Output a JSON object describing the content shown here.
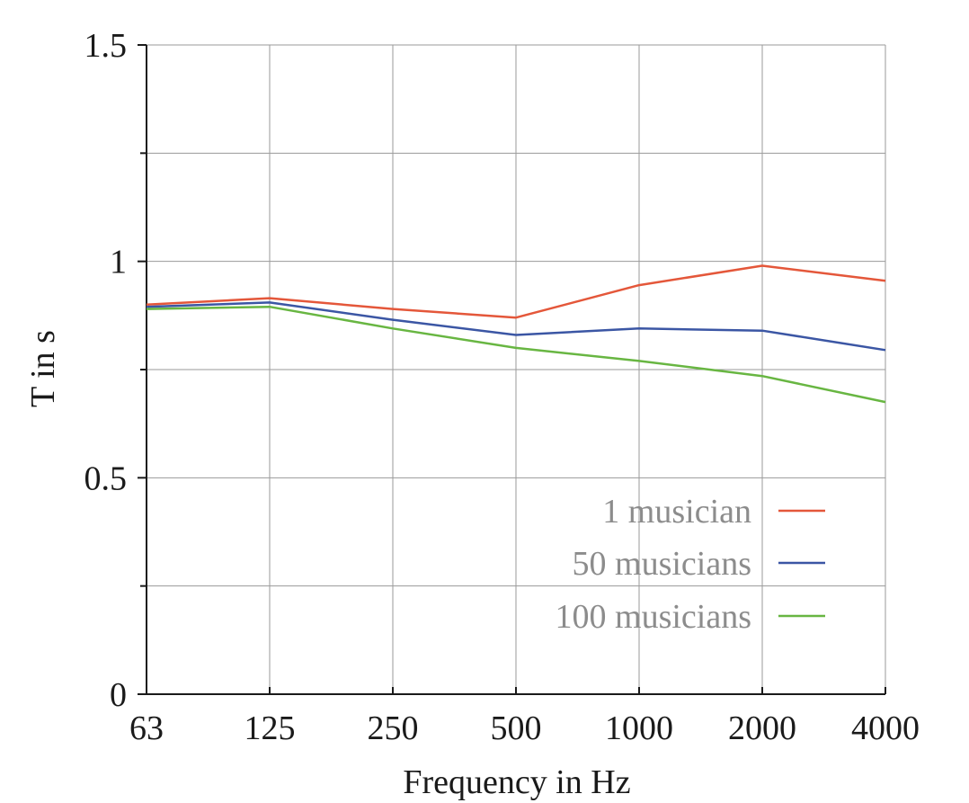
{
  "chart_data": {
    "type": "line",
    "title": "",
    "xlabel": "Frequency in Hz",
    "ylabel": "T in s",
    "categories": [
      "63",
      "125",
      "250",
      "500",
      "1000",
      "2000",
      "4000"
    ],
    "ylim": [
      0,
      1.5
    ],
    "yticks": [
      0,
      0.5,
      1,
      1.5
    ],
    "ytick_labels": [
      "0",
      "0.5",
      "1",
      "1.5"
    ],
    "yminor_ticks": [
      0.25,
      0.75,
      1.25
    ],
    "grid": true,
    "legend_position": "bottom-right",
    "series": [
      {
        "name": "1 musician",
        "color": "#e4573a",
        "values": [
          0.9,
          0.915,
          0.89,
          0.87,
          0.945,
          0.99,
          0.955
        ]
      },
      {
        "name": "50 musicians",
        "color": "#3b56a4",
        "values": [
          0.895,
          0.905,
          0.865,
          0.83,
          0.845,
          0.84,
          0.795
        ]
      },
      {
        "name": "100 musicians",
        "color": "#68b642",
        "values": [
          0.89,
          0.895,
          0.845,
          0.8,
          0.77,
          0.735,
          0.675
        ]
      }
    ]
  }
}
